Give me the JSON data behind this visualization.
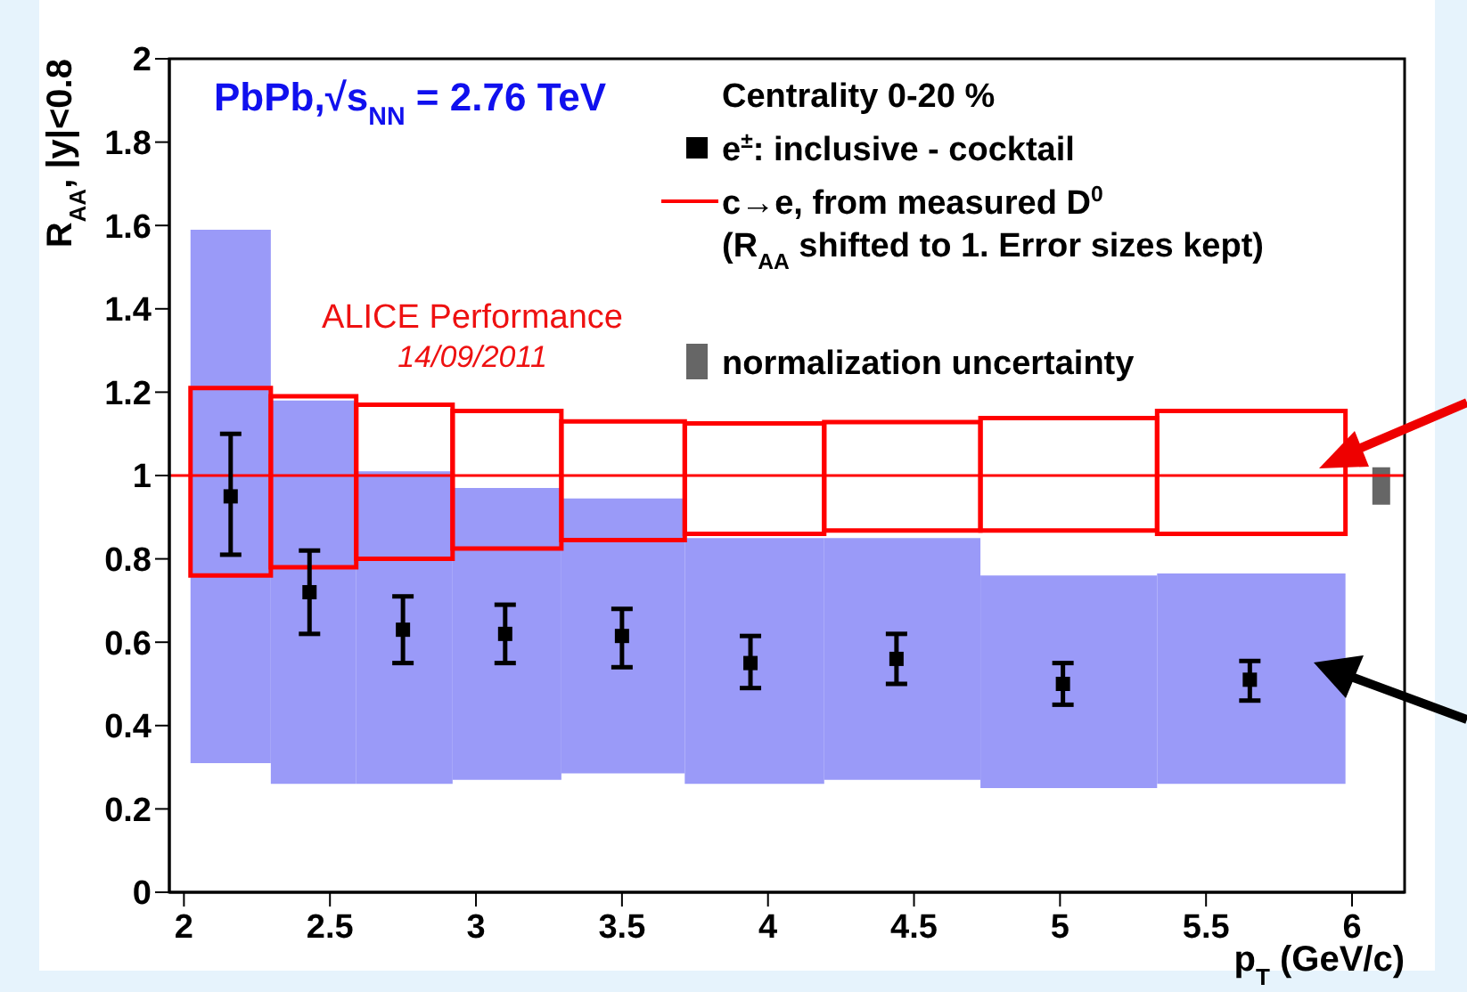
{
  "chart_data": {
    "type": "scatter",
    "title": "PbPb,√s$_{NN}$ = 2.76 TeV",
    "legend_title": "Centrality 0-20 %",
    "xlabel": "p$_{T}$ (GeV/c)",
    "ylabel": "R$_{AA}$, |y|<0.8",
    "annotations": [
      "ALICE Performance",
      "14/09/2011"
    ],
    "xlim": [
      1.95,
      6.18
    ],
    "xticks": [
      2,
      2.5,
      3,
      3.5,
      4,
      4.5,
      5,
      5.5,
      6
    ],
    "ylim": [
      0,
      2
    ],
    "yticks": [
      0,
      0.2,
      0.4,
      0.6,
      0.8,
      1,
      1.2,
      1.4,
      1.6,
      1.8,
      2
    ],
    "legend": "top right",
    "series": [
      {
        "type": "bar",
        "color": "#9a9af8",
        "x": [
          2.16,
          2.435,
          2.745,
          3.095,
          3.49,
          3.94,
          4.445,
          5.01,
          5.655
        ],
        "base": [
          0.31,
          0.26,
          0.26,
          0.27,
          0.285,
          0.26,
          0.27,
          0.25,
          0.26
        ],
        "values": [
          1.28,
          0.92,
          0.75,
          0.7,
          0.66,
          0.59,
          0.58,
          0.51,
          0.505
        ]
      },
      {
        "name": "e$^{±}$: inclusive - cocktail",
        "color": "#000000",
        "marker": "square",
        "x": [
          2.16,
          2.43,
          2.75,
          3.1,
          3.5,
          3.94,
          4.44,
          5.01,
          5.65
        ],
        "values": [
          0.95,
          0.72,
          0.63,
          0.62,
          0.615,
          0.55,
          0.56,
          0.5,
          0.51
        ],
        "errors": [
          [
            0.81,
            1.1
          ],
          [
            0.62,
            0.82
          ],
          [
            0.55,
            0.71
          ],
          [
            0.55,
            0.69
          ],
          [
            0.54,
            0.68
          ],
          [
            0.49,
            0.615
          ],
          [
            0.5,
            0.62
          ],
          [
            0.45,
            0.55
          ],
          [
            0.46,
            0.555
          ]
        ]
      },
      {
        "type": "bar",
        "name": "c→e, from measured D$^{0}$\n(R$_{AA}$ shifted to 1. Error sizes kept)",
        "color": "#ff0000",
        "line_style": "solid",
        "x": [
          2.16,
          2.435,
          2.745,
          3.095,
          3.49,
          3.94,
          4.445,
          5.01,
          5.655
        ],
        "base": [
          0.76,
          0.78,
          0.8,
          0.825,
          0.845,
          0.86,
          0.868,
          0.868,
          0.86
        ],
        "values": [
          0.45,
          0.41,
          0.37,
          0.33,
          0.285,
          0.265,
          0.26,
          0.27,
          0.295
        ]
      },
      {
        "type": "bar",
        "name": "normalization uncertainty",
        "color": "#666666",
        "x": [
          6.1
        ],
        "base": [
          0.93
        ],
        "values": [
          0.09
        ]
      }
    ],
    "ref_lines": [
      {
        "axis": "y",
        "value": 1,
        "color": "#ff0000"
      }
    ]
  }
}
